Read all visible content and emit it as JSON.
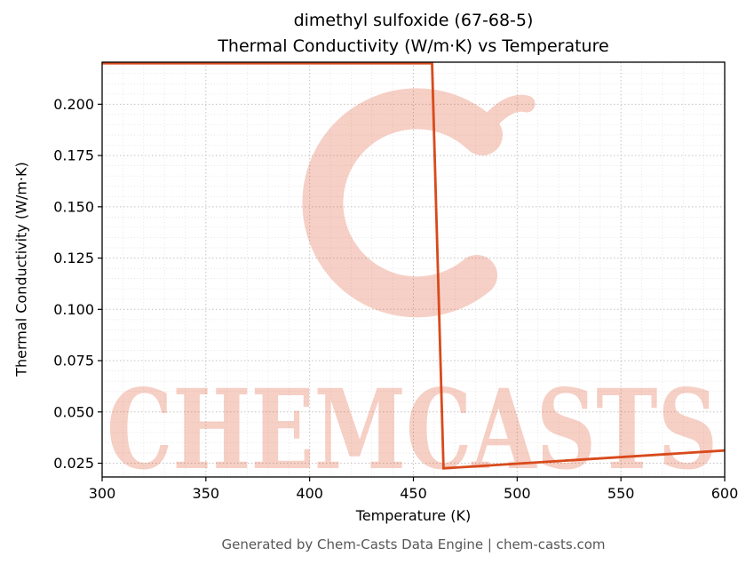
{
  "chart_data": {
    "type": "line",
    "title": "dimethyl sulfoxide (67-68-5)",
    "subtitle": "Thermal Conductivity (W/m·K) vs Temperature",
    "xlabel": "Temperature (K)",
    "ylabel": "Thermal Conductivity (W/m·K)",
    "xlim": [
      300,
      600
    ],
    "ylim": [
      0.0183,
      0.2205
    ],
    "xticks": [
      {
        "v": 300,
        "label": "300"
      },
      {
        "v": 350,
        "label": "350"
      },
      {
        "v": 400,
        "label": "400"
      },
      {
        "v": 450,
        "label": "450"
      },
      {
        "v": 500,
        "label": "500"
      },
      {
        "v": 550,
        "label": "550"
      },
      {
        "v": 600,
        "label": "600"
      }
    ],
    "yticks": [
      {
        "v": 0.025,
        "label": "0.025"
      },
      {
        "v": 0.05,
        "label": "0.050"
      },
      {
        "v": 0.075,
        "label": "0.075"
      },
      {
        "v": 0.1,
        "label": "0.100"
      },
      {
        "v": 0.125,
        "label": "0.125"
      },
      {
        "v": 0.15,
        "label": "0.150"
      },
      {
        "v": 0.175,
        "label": "0.175"
      },
      {
        "v": 0.2,
        "label": "0.200"
      }
    ],
    "minor_x_step": 10,
    "minor_y_step": 0.005,
    "grid": true,
    "grid_style": "dotted",
    "legend": false,
    "line_color": "#d84a1b",
    "line_width": 2.8,
    "series": [
      {
        "name": "thermal_conductivity",
        "points": [
          [
            300,
            0.22
          ],
          [
            459,
            0.22
          ],
          [
            464.5,
            0.0225
          ],
          [
            600,
            0.0312
          ]
        ]
      }
    ]
  },
  "watermark": {
    "text": "CHEMCASTS",
    "logo_icon": "chemcasts-c-logo",
    "color": "#e05531",
    "opacity": 0.28
  },
  "footer": {
    "text": "Generated by Chem-Casts Data Engine | chem-casts.com"
  }
}
